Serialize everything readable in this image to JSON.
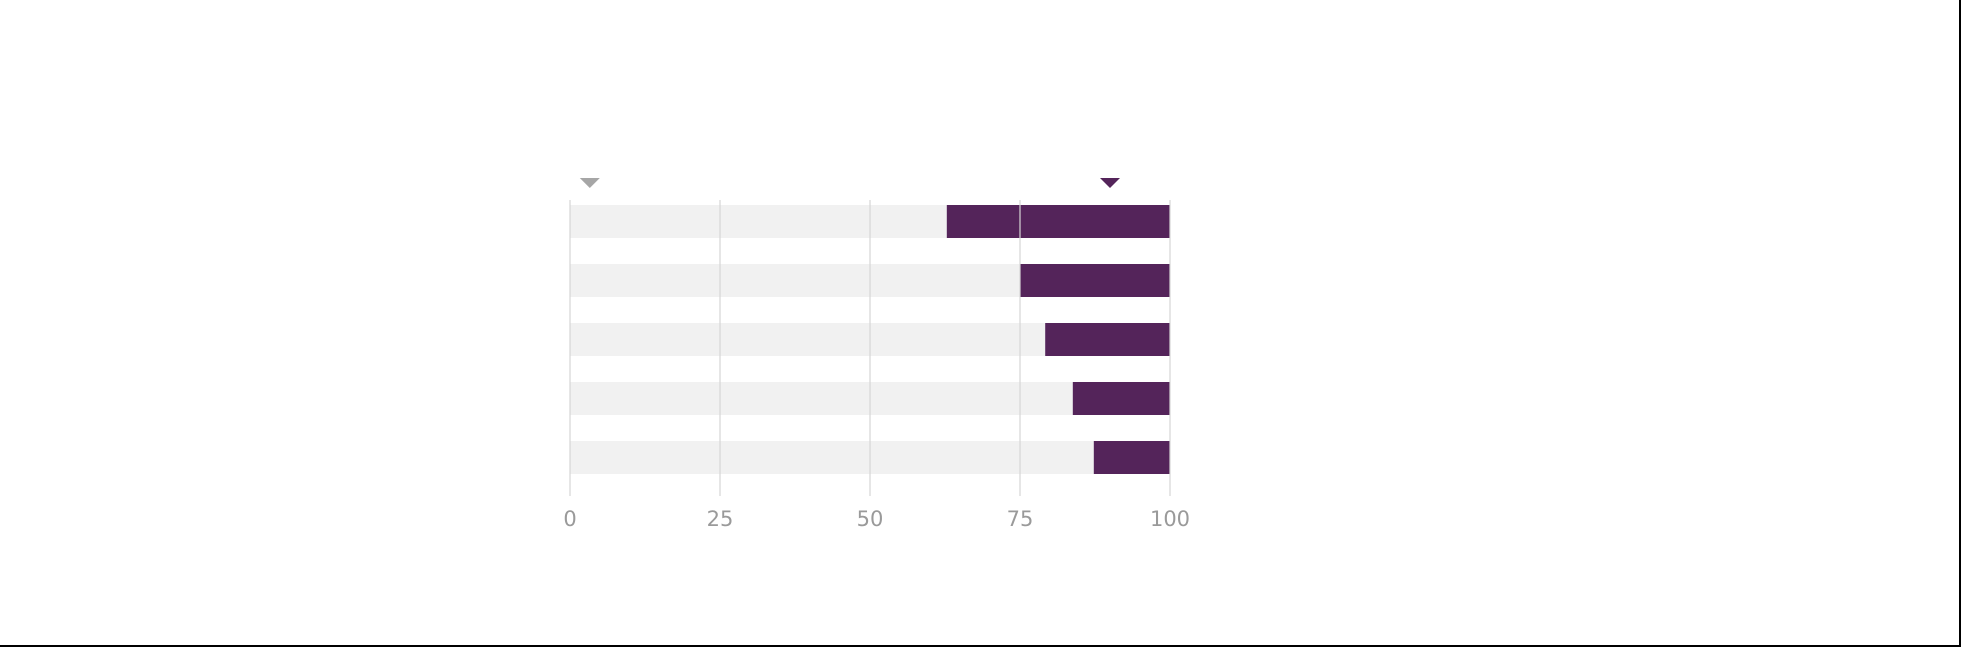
{
  "chart_data": {
    "type": "bar",
    "orientation": "horizontal",
    "stacked": true,
    "title": "",
    "xlabel": "",
    "ylabel": "",
    "xlim": [
      0,
      100
    ],
    "xticks": [
      "0",
      "25",
      "50",
      "75",
      "100"
    ],
    "grid": true,
    "legend": "none",
    "categories": [
      "",
      "",
      "",
      "",
      ""
    ],
    "series": [
      {
        "values": [
          62.8,
          75,
          79.2,
          83.8,
          87.3
        ],
        "color": "#f1f1f1"
      },
      {
        "values": [
          37.2,
          25,
          20.8,
          16.2,
          12.7
        ],
        "color": "#54245a"
      }
    ],
    "markers": [
      {
        "value": 3.3,
        "color": "#a6a6a6",
        "icon": "triangle-down-icon"
      },
      {
        "value": 90,
        "color": "#54245a",
        "icon": "triangle-down-icon"
      }
    ],
    "colors": {
      "grid": "#d6d6d6",
      "tick_label": "#9a9a9a"
    }
  }
}
